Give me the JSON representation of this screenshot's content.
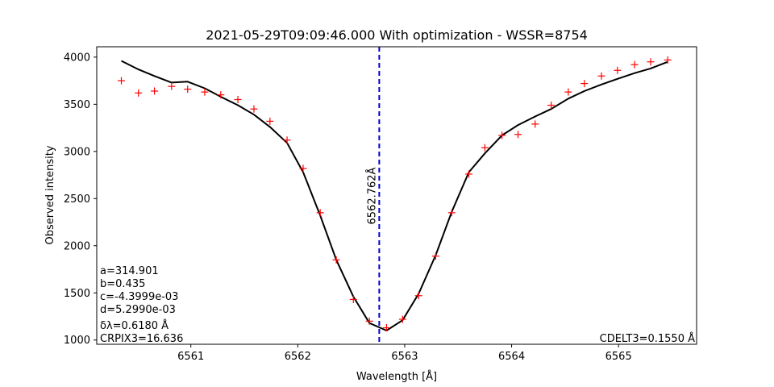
{
  "chart_data": {
    "type": "line",
    "title": "2021-05-29T09:09:46.000 With optimization - WSSR=8754",
    "xlabel": "Wavelength [Å]",
    "ylabel": "Observed intensity",
    "xlim": [
      6560.12,
      6565.73
    ],
    "ylim": [
      955,
      4110
    ],
    "xticks": [
      6561,
      6562,
      6563,
      6564,
      6565
    ],
    "yticks": [
      1000,
      1500,
      2000,
      2500,
      3000,
      3500,
      4000
    ],
    "grid": false,
    "series": [
      {
        "kind": "markers",
        "marker": "+",
        "color": "#ff0000",
        "x": [
          6560.35,
          6560.51,
          6560.66,
          6560.82,
          6560.97,
          6561.13,
          6561.28,
          6561.44,
          6561.59,
          6561.74,
          6561.9,
          6562.05,
          6562.21,
          6562.36,
          6562.52,
          6562.67,
          6562.83,
          6562.98,
          6563.13,
          6563.29,
          6563.44,
          6563.6,
          6563.75,
          6563.91,
          6564.06,
          6564.22,
          6564.37,
          6564.53,
          6564.68,
          6564.84,
          6564.99,
          6565.15,
          6565.3,
          6565.46
        ],
        "y": [
          3750,
          3620,
          3640,
          3690,
          3660,
          3630,
          3600,
          3550,
          3450,
          3320,
          3120,
          2820,
          2350,
          1850,
          1430,
          1200,
          1130,
          1220,
          1470,
          1890,
          2350,
          2760,
          3040,
          3170,
          3180,
          3290,
          3490,
          3630,
          3720,
          3800,
          3860,
          3920,
          3950,
          3970
        ]
      },
      {
        "kind": "line",
        "color": "#000000",
        "x": [
          6560.35,
          6560.51,
          6560.66,
          6560.82,
          6560.97,
          6561.13,
          6561.28,
          6561.44,
          6561.59,
          6561.74,
          6561.9,
          6562.05,
          6562.21,
          6562.36,
          6562.52,
          6562.67,
          6562.83,
          6562.98,
          6563.13,
          6563.29,
          6563.44,
          6563.6,
          6563.75,
          6563.91,
          6564.06,
          6564.22,
          6564.37,
          6564.53,
          6564.68,
          6564.84,
          6564.99,
          6565.15,
          6565.3,
          6565.46
        ],
        "y": [
          3960,
          3870,
          3800,
          3730,
          3740,
          3670,
          3580,
          3490,
          3390,
          3260,
          3090,
          2780,
          2320,
          1850,
          1460,
          1180,
          1100,
          1210,
          1490,
          1900,
          2360,
          2780,
          2980,
          3170,
          3280,
          3370,
          3450,
          3560,
          3640,
          3710,
          3770,
          3830,
          3880,
          3950
        ]
      }
    ],
    "vline": {
      "x": 6562.762,
      "color": "#0000cc",
      "style": "dashed",
      "label": "6562.762Å"
    },
    "annotations_left": [
      "a=314.901",
      "b=0.435",
      "c=-4.3999e-03",
      "d=5.2990e-03",
      "δλ=0.6180 Å",
      "CRPIX3=16.636"
    ],
    "annotation_right": "CDELT3=0.1550 Å"
  }
}
